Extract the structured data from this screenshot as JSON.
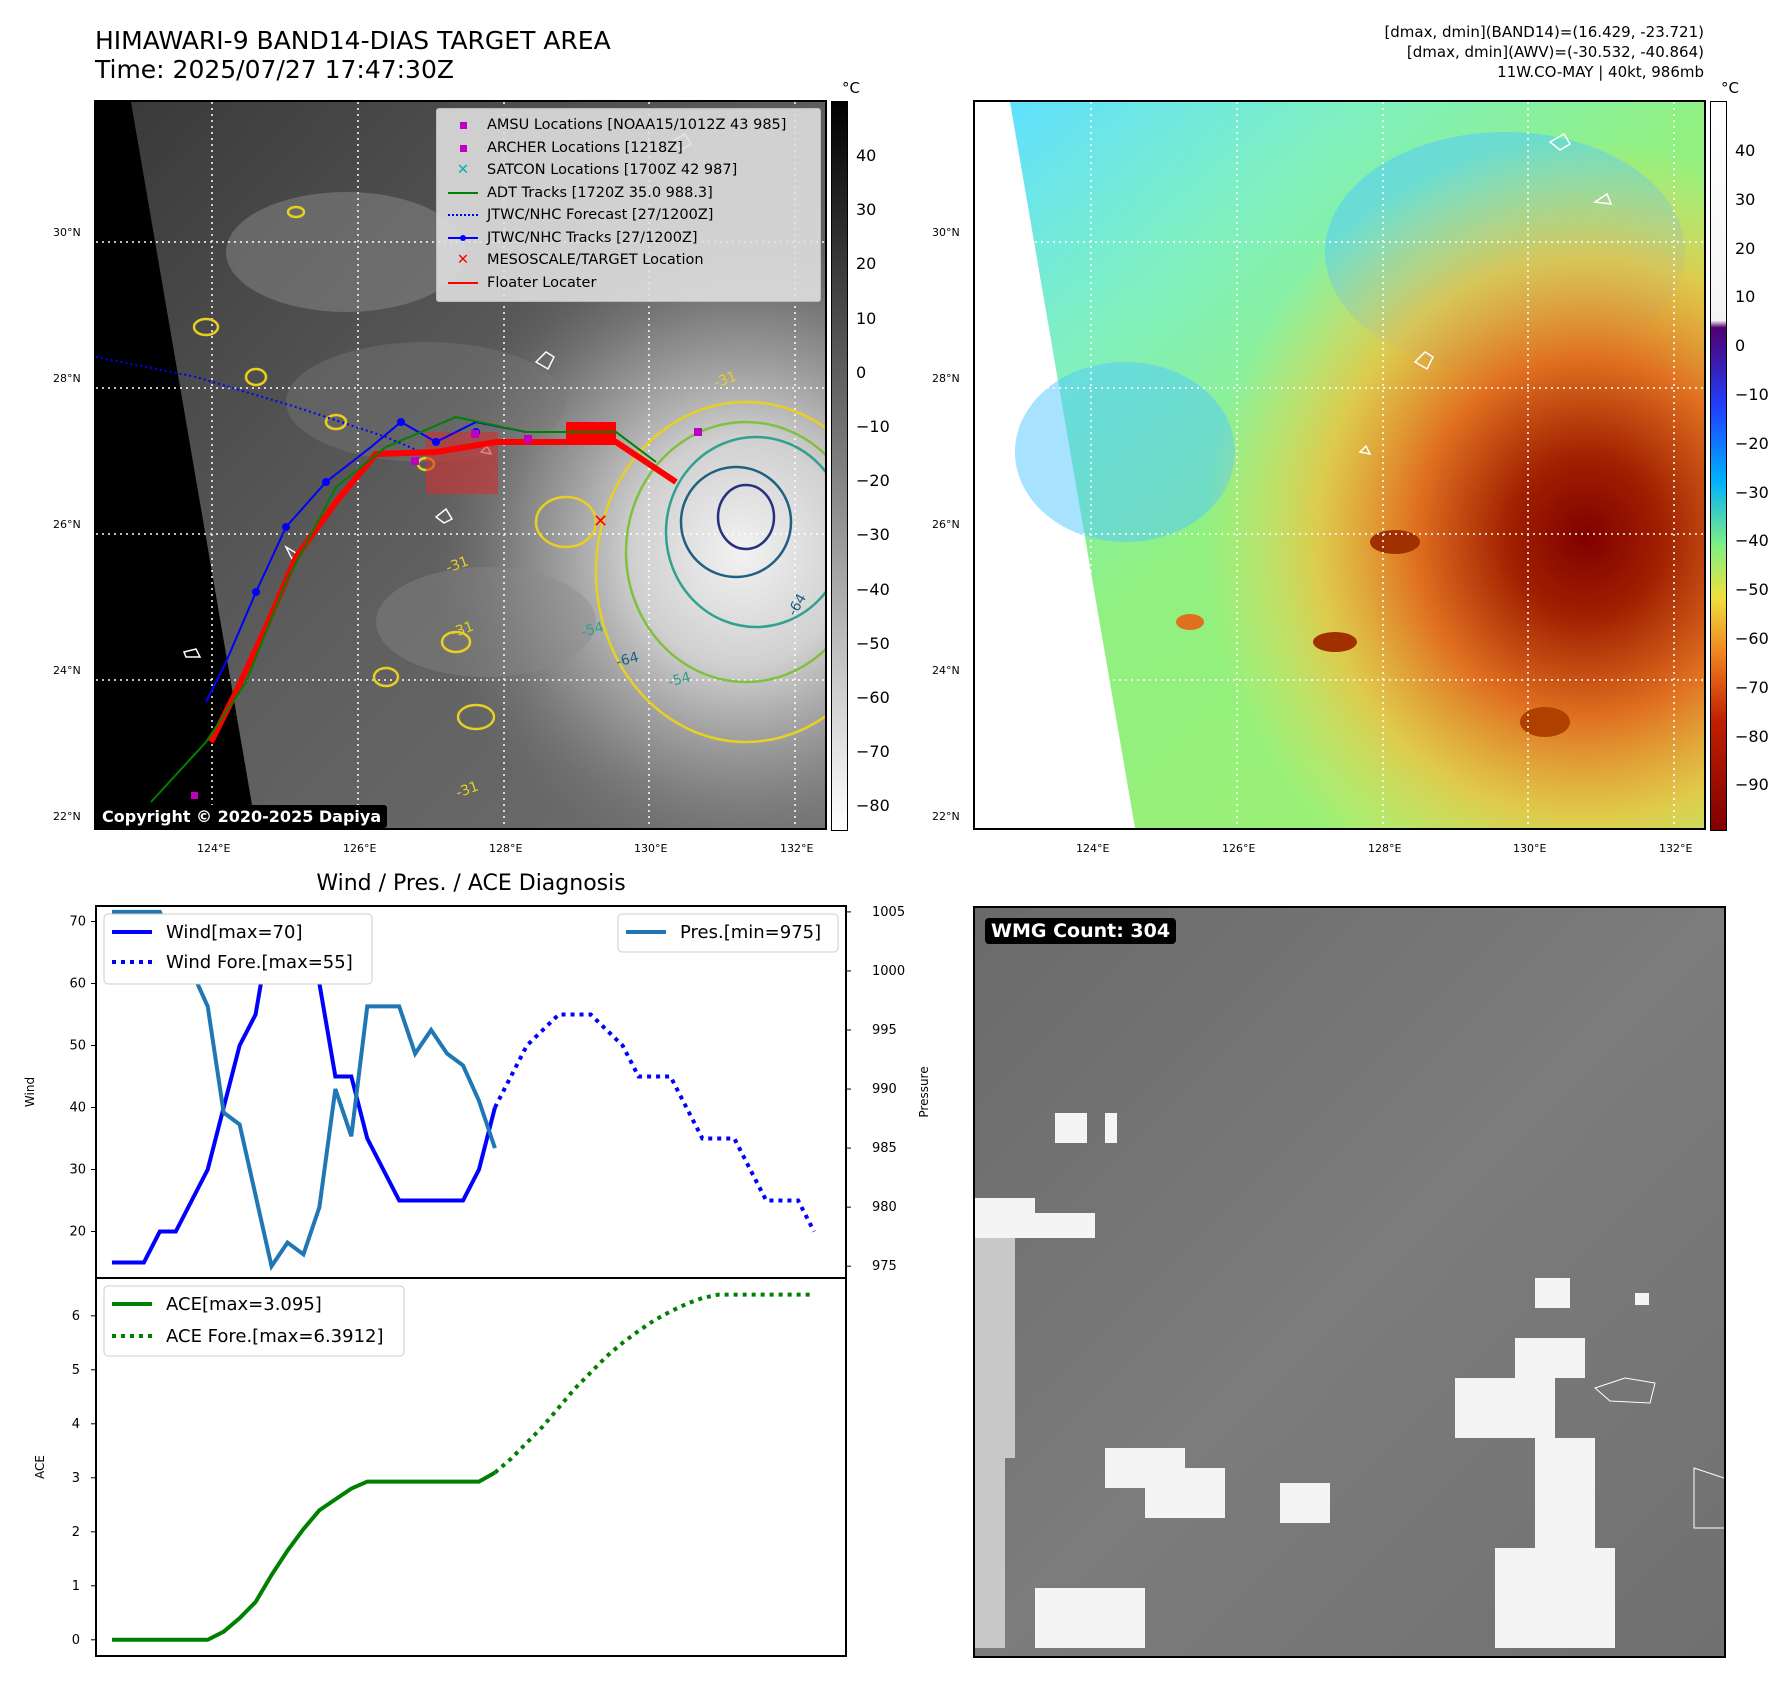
{
  "header": {
    "title_line1": "HIMAWARI-9 BAND14-DIAS TARGET AREA",
    "title_line2": "Time: 2025/07/27 17:47:30Z",
    "info_line1": "[dmax, dmin](BAND14)=(16.429, -23.721)",
    "info_line2": "[dmax, dmin](AWV)=(-30.532, -40.864)",
    "info_line3": "11W.CO-MAY | 40kt, 986mb"
  },
  "map_axes": {
    "lon_labels": [
      "124°E",
      "126°E",
      "128°E",
      "130°E",
      "132°E"
    ],
    "lat_labels": [
      "30°N",
      "28°N",
      "26°N",
      "24°N",
      "22°N"
    ]
  },
  "left_map": {
    "colorbar_unit": "°C",
    "colorbar_ticks": [
      "40",
      "30",
      "20",
      "10",
      "0",
      "−10",
      "−20",
      "−30",
      "−40",
      "−50",
      "−60",
      "−70",
      "−80"
    ],
    "legend": [
      {
        "label": "AMSU Locations [NOAA15/1012Z 43 985]",
        "color": "#c000c0",
        "marker": "square"
      },
      {
        "label": "ARCHER Locations [1218Z]",
        "color": "#c000c0",
        "marker": "square"
      },
      {
        "label": "SATCON Locations [1700Z 42 987]",
        "color": "#00b0b0",
        "marker": "x"
      },
      {
        "label": "ADT Tracks [1720Z 35.0 988.3]",
        "color": "#008000",
        "marker": "line"
      },
      {
        "label": "JTWC/NHC Forecast [27/1200Z]",
        "color": "#0000ff",
        "marker": "dotted"
      },
      {
        "label": "JTWC/NHC Tracks [27/1200Z]",
        "color": "#0000ff",
        "marker": "line-dot"
      },
      {
        "label": "MESOSCALE/TARGET Location",
        "color": "#ff0000",
        "marker": "x"
      },
      {
        "label": "Floater Locater",
        "color": "#ff0000",
        "marker": "line"
      }
    ],
    "contour_labels": [
      "-31",
      "-31",
      "-31",
      "-31",
      "-54",
      "-54",
      "-64",
      "-64"
    ],
    "copyright": "Copyright © 2020-2025 Dapiya"
  },
  "right_map": {
    "colorbar_unit": "°C",
    "colorbar_ticks": [
      "40",
      "30",
      "20",
      "10",
      "0",
      "−10",
      "−20",
      "−30",
      "−40",
      "−50",
      "−60",
      "−70",
      "−80",
      "−90"
    ]
  },
  "wmg": {
    "label": "WMG Count: 304"
  },
  "chart_data": [
    {
      "type": "line",
      "title": "Wind / Pres. / ACE Diagnosis",
      "ylabel": "Wind",
      "y2label": "Pressure",
      "ylim": [
        12.5,
        72.5
      ],
      "y2lim": [
        974,
        1005.5
      ],
      "yticks": [
        20,
        30,
        40,
        50,
        60,
        70
      ],
      "y2ticks": [
        975,
        980,
        985,
        990,
        995,
        1000,
        1005
      ],
      "series": [
        {
          "name": "Wind[max=70]",
          "axis": "left",
          "color": "#0000ff",
          "style": "solid",
          "values": [
            15,
            15,
            15,
            20,
            20,
            25,
            30,
            40,
            50,
            55,
            70,
            65,
            65,
            60,
            45,
            45,
            35,
            30,
            25,
            25,
            25,
            25,
            25,
            30,
            40
          ]
        },
        {
          "name": "Wind Fore.[max=55]",
          "axis": "left",
          "color": "#0000ff",
          "style": "dotted",
          "values": [
            null,
            null,
            null,
            null,
            null,
            null,
            null,
            null,
            null,
            null,
            null,
            null,
            null,
            null,
            null,
            null,
            null,
            null,
            null,
            null,
            null,
            null,
            null,
            null,
            40,
            45,
            50,
            52.5,
            55,
            55,
            55,
            52.5,
            50,
            45,
            45,
            45,
            40,
            35,
            35,
            35,
            30,
            25,
            25,
            25,
            20
          ]
        },
        {
          "name": "Pres.[min=975]",
          "axis": "right",
          "color": "#1f77b4",
          "style": "solid",
          "values": [
            1005,
            1005,
            1005,
            1005,
            1002,
            1000,
            997,
            988,
            987,
            981,
            975,
            977,
            976,
            980,
            990,
            986,
            997,
            997,
            997,
            993,
            995,
            993,
            992,
            989,
            985
          ]
        }
      ]
    },
    {
      "type": "line",
      "ylabel": "ACE",
      "ylim": [
        -0.3,
        6.7
      ],
      "yticks": [
        0,
        1,
        2,
        3,
        4,
        5,
        6
      ],
      "series": [
        {
          "name": "ACE[max=3.095]",
          "color": "#008000",
          "style": "solid",
          "values": [
            0,
            0,
            0,
            0,
            0,
            0,
            0,
            0.15,
            0.4,
            0.7,
            1.2,
            1.65,
            2.05,
            2.4,
            2.6,
            2.8,
            2.93,
            2.93,
            2.93,
            2.93,
            2.93,
            2.93,
            2.93,
            2.93,
            3.095
          ]
        },
        {
          "name": "ACE Fore.[max=6.3912]",
          "color": "#008000",
          "style": "dotted",
          "values": [
            null,
            null,
            null,
            null,
            null,
            null,
            null,
            null,
            null,
            null,
            null,
            null,
            null,
            null,
            null,
            null,
            null,
            null,
            null,
            null,
            null,
            null,
            null,
            null,
            3.095,
            3.35,
            3.65,
            3.95,
            4.3,
            4.65,
            4.95,
            5.25,
            5.5,
            5.72,
            5.92,
            6.08,
            6.22,
            6.33,
            6.3912,
            6.3912,
            6.3912,
            6.3912,
            6.3912,
            6.3912,
            6.3912
          ]
        }
      ]
    }
  ]
}
